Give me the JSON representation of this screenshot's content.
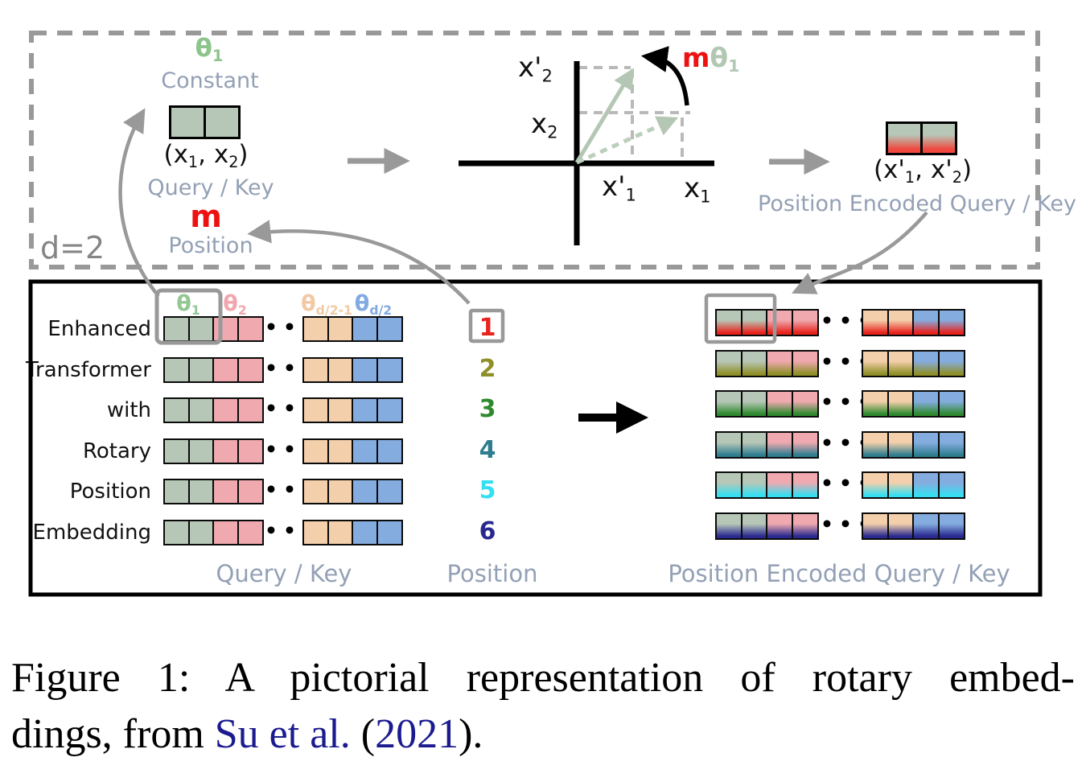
{
  "top_panel": {
    "d_label": "d=2",
    "theta_constant": {
      "symbol": "θ",
      "sub": "1",
      "caption": "Constant"
    },
    "query_key": {
      "vector_open": "(x",
      "vector_sub1": "1",
      "vector_mid": ", x",
      "vector_sub2": "2",
      "vector_close": ")",
      "caption": "Query / Key"
    },
    "m_position": {
      "symbol": "m",
      "caption": "Position"
    },
    "rotation": {
      "m": "m",
      "theta": "θ",
      "sub": "1"
    },
    "axes": {
      "x2_prime": {
        "base": "x",
        "prime": "'",
        "sub": "2"
      },
      "x2": {
        "base": "x",
        "prime": "",
        "sub": "2"
      },
      "x1_prime": {
        "base": "x",
        "prime": "'",
        "sub": "1"
      },
      "x1": {
        "base": "x",
        "prime": "",
        "sub": "1"
      }
    },
    "encoded": {
      "vector_open": "(x'",
      "vector_sub1": "1",
      "vector_mid": ", x'",
      "vector_sub2": "2",
      "vector_close": ")",
      "caption": "Position Encoded Query / Key"
    }
  },
  "bottom_panel": {
    "theta_headers": [
      {
        "symbol": "θ",
        "sub": "1",
        "color": "#94c794"
      },
      {
        "symbol": "θ",
        "sub": "2",
        "color": "#f2a6ae"
      },
      {
        "symbol": "θ",
        "sub": "d/2-1",
        "color": "#f2c9a4"
      },
      {
        "symbol": "θ",
        "sub": "d/2",
        "color": "#82aae2"
      }
    ],
    "cell_colors": {
      "green": "#b7c7b7",
      "pink": "#efa9af",
      "tan": "#f3cfab",
      "blue": "#85acdf"
    },
    "cell_pattern_left": [
      "green",
      "green",
      "pink",
      "pink"
    ],
    "cell_pattern_right": [
      "tan",
      "tan",
      "blue",
      "blue"
    ],
    "ellipsis": "•••",
    "rows": [
      {
        "word": "Enhanced",
        "position": "1",
        "position_color": "#e8221c"
      },
      {
        "word": "Transformer",
        "position": "2",
        "position_color": "#8f8f28"
      },
      {
        "word": "with",
        "position": "3",
        "position_color": "#2e8a2e"
      },
      {
        "word": "Rotary",
        "position": "4",
        "position_color": "#2e7d8f"
      },
      {
        "word": "Position",
        "position": "5",
        "position_color": "#35dff2"
      },
      {
        "word": "Embedding",
        "position": "6",
        "position_color": "#28288f"
      }
    ],
    "column_labels": {
      "query_key": "Query / Key",
      "position": "Position",
      "encoded": "Position Encoded Query / Key"
    }
  },
  "caption": {
    "line1": "Figure 1:  A pictorial representation of rotary embed-",
    "line2_prefix": "dings, from ",
    "citation": "Su et al.",
    "line2_mid": " (",
    "year": "2021",
    "line2_suffix": ")."
  },
  "colors": {
    "accent_red": "#ee1111",
    "label_gray_blue": "#93a0b5",
    "arrow_gray": "#999999",
    "sage_green": "#b4c6b4",
    "link_blue": "#1b1b8f"
  }
}
